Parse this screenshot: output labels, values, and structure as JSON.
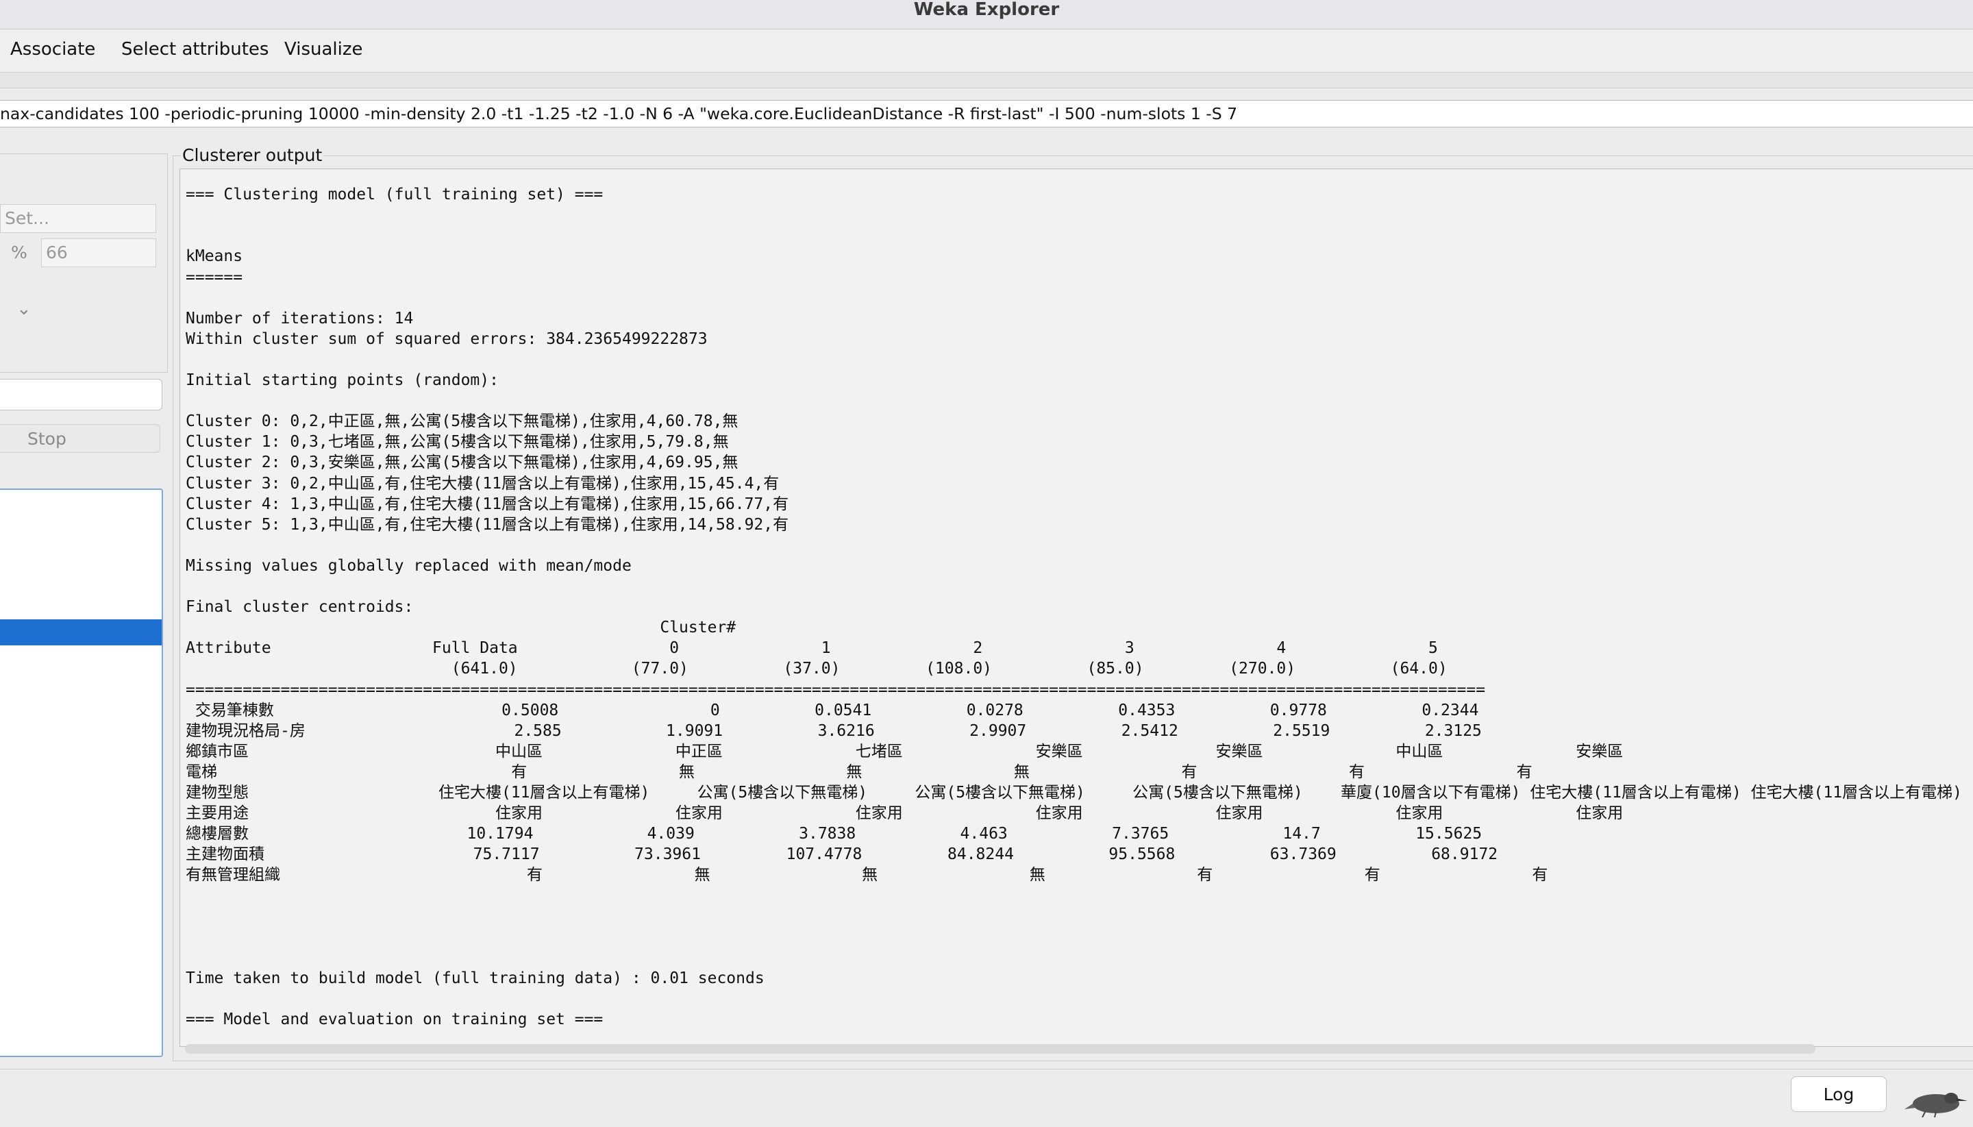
{
  "window": {
    "title": "Weka Explorer"
  },
  "tabs": [
    "Associate",
    "Select attributes",
    "Visualize"
  ],
  "command_line": "nax-candidates 100 -periodic-pruning 10000 -min-density 2.0 -t1 -1.25 -t2 -1.0 -N 6 -A \"weka.core.EuclideanDistance -R first-last\" -I 500 -num-slots 1 -S 7",
  "left": {
    "set_button": "Set...",
    "percent_symbol": "%",
    "split_value": "66",
    "stop_button": "Stop"
  },
  "output": {
    "label": "Clusterer output",
    "lines": [
      "",
      "=== Clustering model (full training set) ===",
      "",
      "",
      "kMeans",
      "======",
      "",
      "Number of iterations: 14",
      "Within cluster sum of squared errors: 384.2365499222873",
      "",
      "Initial starting points (random):",
      "",
      "Cluster 0: 0,2,中正區,無,公寓(5樓含以下無電梯),住家用,4,60.78,無",
      "Cluster 1: 0,3,七堵區,無,公寓(5樓含以下無電梯),住家用,5,79.8,無",
      "Cluster 2: 0,3,安樂區,無,公寓(5樓含以下無電梯),住家用,4,69.95,無",
      "Cluster 3: 0,2,中山區,有,住宅大樓(11層含以上有電梯),住家用,15,45.4,有",
      "Cluster 4: 1,3,中山區,有,住宅大樓(11層含以上有電梯),住家用,15,66.77,有",
      "Cluster 5: 1,3,中山區,有,住宅大樓(11層含以上有電梯),住家用,14,58.92,有",
      "",
      "Missing values globally replaced with mean/mode",
      "",
      "Final cluster centroids:",
      "                                                  Cluster#",
      "Attribute                 Full Data                0               1               2               3               4               5",
      "                            (641.0)            (77.0)          (37.0)         (108.0)          (85.0)         (270.0)          (64.0)",
      "=========================================================================================================================================",
      " 交易筆棟數                        0.5008                0          0.0541          0.0278          0.4353          0.9778          0.2344",
      "建物現況格局-房                      2.585           1.9091          3.6216          2.9907          2.5412          2.5519          2.3125",
      "鄉鎮市區                          中山區              中正區              七堵區              安樂區              安樂區              中山區              安樂區",
      "電梯                               有                無                無                無                有                有                有",
      "建物型態                    住宅大樓(11層含以上有電梯)     公寓(5樓含以下無電梯)     公寓(5樓含以下無電梯)     公寓(5樓含以下無電梯)    華廈(10層含以下有電梯) 住宅大樓(11層含以上有電梯) 住宅大樓(11層含以上有電梯)",
      "主要用途                          住家用              住家用              住家用              住家用              住家用              住家用              住家用",
      "總樓層數                       10.1794            4.039           3.7838           4.463           7.3765            14.7          15.5625",
      "主建物面積                      75.7117          73.3961         107.4778         84.8244          95.5568          63.7369          68.9172",
      "有無管理組織                          有                無                無                無                有                有                有",
      "",
      "",
      "",
      "",
      "Time taken to build model (full training data) : 0.01 seconds",
      "",
      "=== Model and evaluation on training set ==="
    ]
  },
  "status": {
    "log_button": "Log"
  },
  "icons": {
    "status_icon": "weka-bird-icon",
    "dropdown": "chevron-down-icon"
  }
}
